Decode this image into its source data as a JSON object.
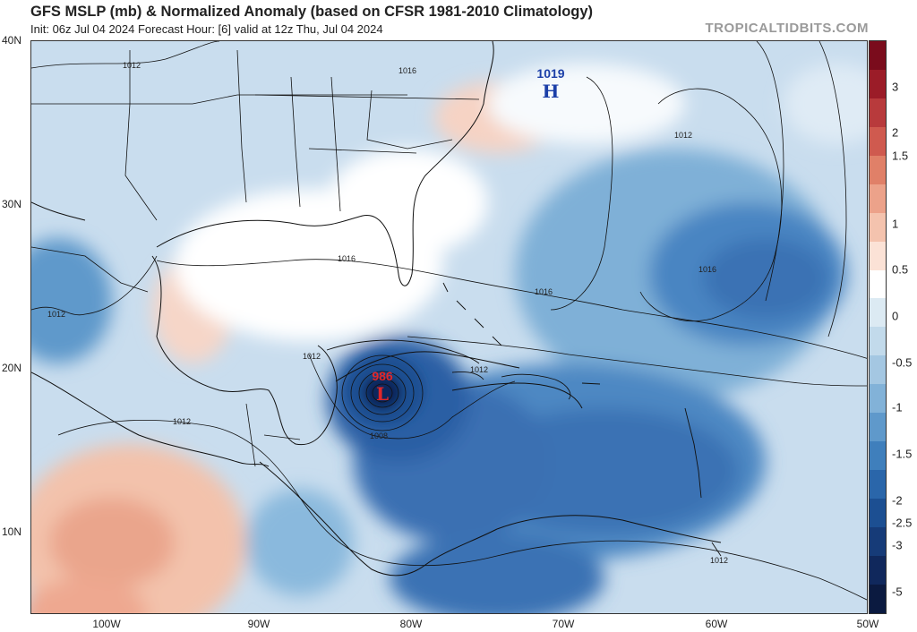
{
  "header": {
    "title": "GFS MSLP (mb) & Normalized Anomaly (based on CFSR 1981-2010 Climatology)",
    "subtitle": "Init: 06z Jul 04 2024   Forecast Hour: [6]   valid at 12z Thu, Jul 04 2024",
    "credit": "TROPICALTIDBITS.COM"
  },
  "axes": {
    "lat_labels": [
      "40N",
      "30N",
      "20N",
      "10N"
    ],
    "lon_labels": [
      "100W",
      "90W",
      "80W",
      "70W",
      "60W",
      "50W"
    ]
  },
  "colorbar": {
    "labels": [
      "3",
      "2",
      "1.5",
      "1",
      "0.5",
      "0",
      "-0.5",
      "-1",
      "-1.5",
      "-2",
      "-2.5",
      "-3",
      "-5"
    ],
    "colors": [
      "#7a0c1c",
      "#9b1c28",
      "#b83a3c",
      "#cf5a4f",
      "#e08068",
      "#eca28a",
      "#f4c3ae",
      "#fbe2d6",
      "#ffffff",
      "#dceaf3",
      "#c2daeb",
      "#a4c7e2",
      "#82b2d8",
      "#5f99cb",
      "#3f7fbc",
      "#2a66aa",
      "#1c4f92",
      "#163b78",
      "#10285c",
      "#0b1a40"
    ]
  },
  "systems": {
    "high": {
      "letter": "H",
      "value": "1019",
      "color": "#1c3fa8"
    },
    "low": {
      "letter": "L",
      "value": "986",
      "color": "#e2272a"
    }
  },
  "contour_labels": [
    "1012",
    "1016",
    "1012",
    "1016",
    "1016",
    "1016",
    "1012",
    "1012",
    "1012",
    "1012",
    "1008",
    "1012"
  ]
}
